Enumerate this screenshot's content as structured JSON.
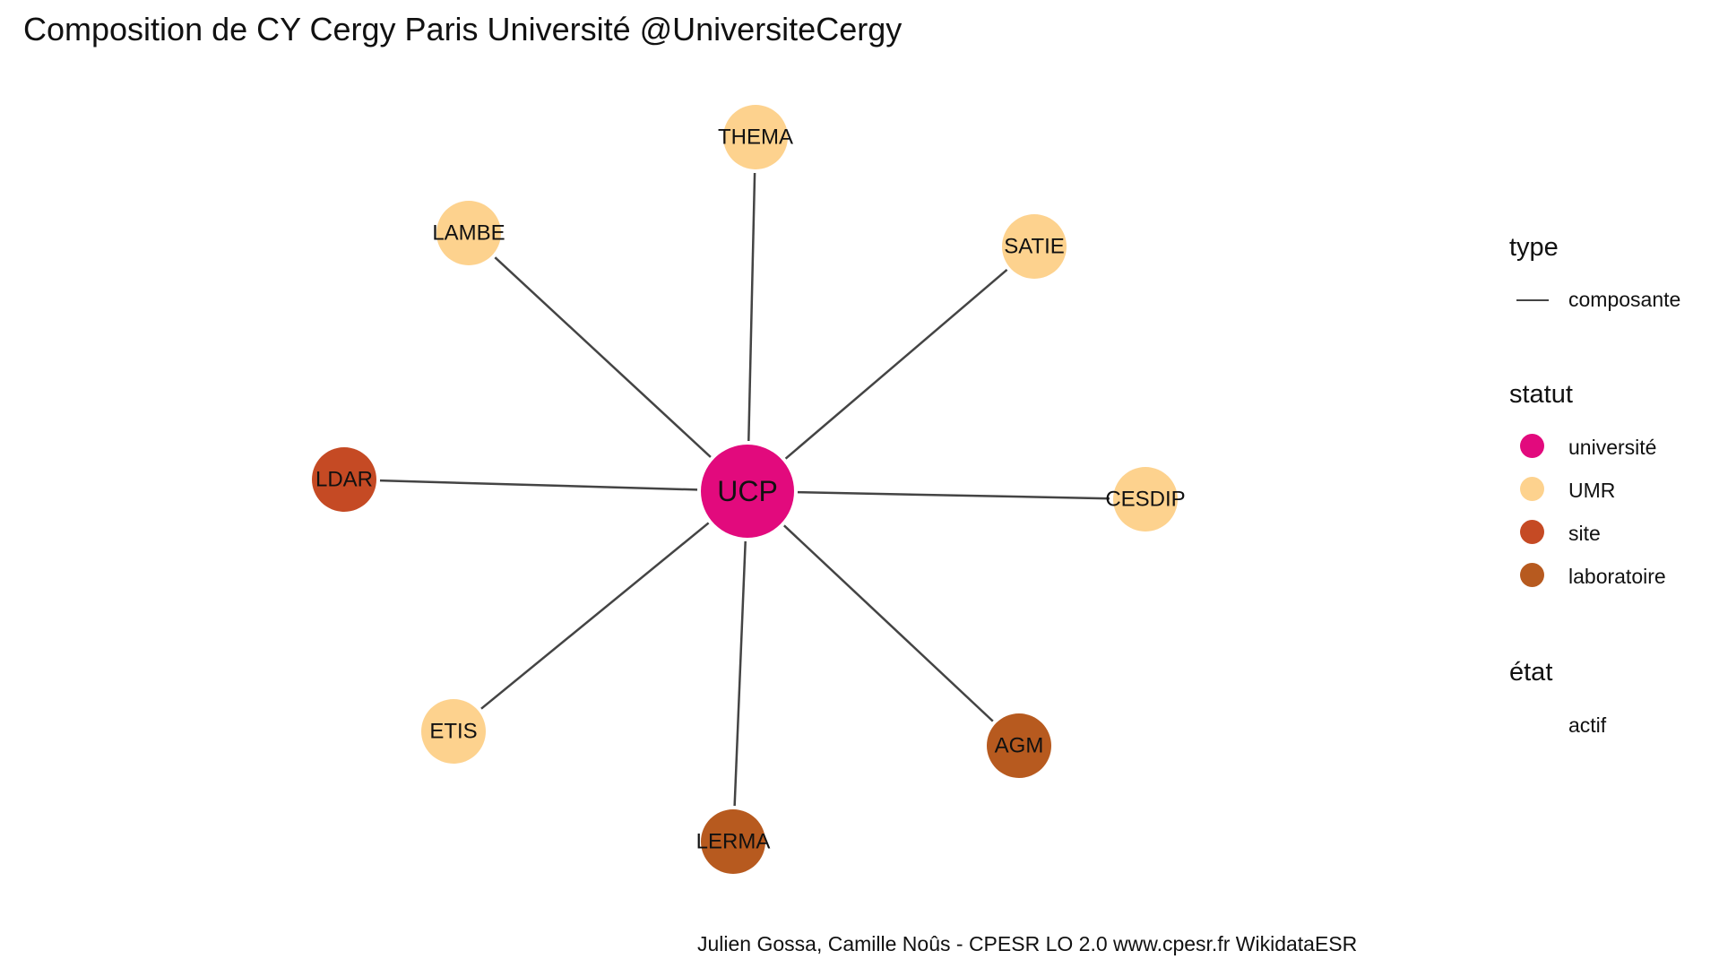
{
  "title": "Composition de CY Cergy Paris Université @UniversiteCergy",
  "caption": "Julien Gossa, Camille Noûs - CPESR LO 2.0 www.cpesr.fr WikidataESR",
  "colors": {
    "université": "#e20a7d",
    "UMR": "#fdd28e",
    "site": "#c54a24",
    "laboratoire": "#b75a1f",
    "edge": "#444444"
  },
  "legend": {
    "type": {
      "title": "type",
      "items": [
        "composante"
      ]
    },
    "statut": {
      "title": "statut",
      "items": [
        "université",
        "UMR",
        "site",
        "laboratoire"
      ]
    },
    "etat": {
      "title": "état",
      "items": [
        "actif"
      ]
    }
  },
  "nodes": [
    {
      "id": "UCP",
      "label": "UCP",
      "statut": "université"
    },
    {
      "id": "THEMA",
      "label": "THEMA",
      "statut": "UMR"
    },
    {
      "id": "LAMBE",
      "label": "LAMBE",
      "statut": "UMR"
    },
    {
      "id": "SATIE",
      "label": "SATIE",
      "statut": "UMR"
    },
    {
      "id": "LDAR",
      "label": "LDAR",
      "statut": "site"
    },
    {
      "id": "CESDIP",
      "label": "CESDIP",
      "statut": "UMR"
    },
    {
      "id": "ETIS",
      "label": "ETIS",
      "statut": "UMR"
    },
    {
      "id": "AGM",
      "label": "AGM",
      "statut": "laboratoire"
    },
    {
      "id": "LERMA",
      "label": "LERMA",
      "statut": "laboratoire"
    }
  ],
  "edges": [
    {
      "from": "UCP",
      "to": "THEMA",
      "type": "composante"
    },
    {
      "from": "UCP",
      "to": "LAMBE",
      "type": "composante"
    },
    {
      "from": "UCP",
      "to": "SATIE",
      "type": "composante"
    },
    {
      "from": "UCP",
      "to": "LDAR",
      "type": "composante"
    },
    {
      "from": "UCP",
      "to": "CESDIP",
      "type": "composante"
    },
    {
      "from": "UCP",
      "to": "ETIS",
      "type": "composante"
    },
    {
      "from": "UCP",
      "to": "AGM",
      "type": "composante"
    },
    {
      "from": "UCP",
      "to": "LERMA",
      "type": "composante"
    }
  ]
}
